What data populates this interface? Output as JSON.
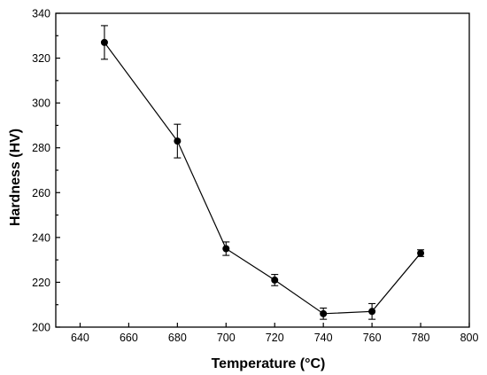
{
  "chart_data": {
    "type": "line",
    "title": "",
    "xlabel": "Temperature (°C)",
    "ylabel": "Hardness (HV)",
    "xlim": [
      630,
      800
    ],
    "ylim": [
      200,
      340
    ],
    "x_ticks": [
      640,
      660,
      680,
      700,
      720,
      740,
      760,
      780,
      800
    ],
    "y_ticks": [
      200,
      220,
      240,
      260,
      280,
      300,
      320,
      340
    ],
    "grid": false,
    "legend": "none",
    "series": [
      {
        "x": [
          650,
          680,
          700,
          720,
          740,
          760,
          780
        ],
        "y": [
          327,
          283,
          235,
          221,
          206,
          207,
          233
        ],
        "error": [
          7.5,
          7.5,
          3,
          2.5,
          2.5,
          3.5,
          1.5
        ],
        "marker": "circle",
        "color": "#000000"
      }
    ]
  }
}
